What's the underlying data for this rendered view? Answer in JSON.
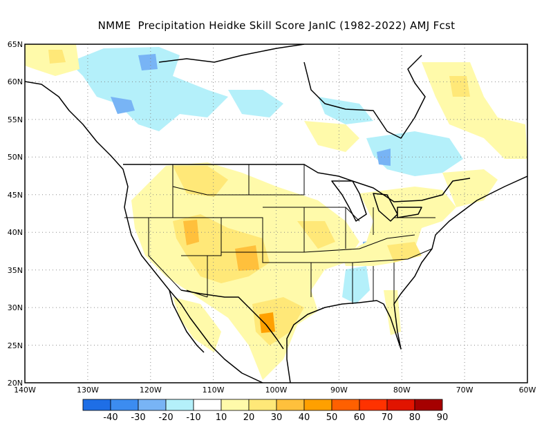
{
  "title": "NMME  Precipitation Heidke Skill Score JanIC (1982-2022) AMJ Fcst",
  "map": {
    "lat_labels": [
      "65N",
      "60N",
      "55N",
      "50N",
      "45N",
      "40N",
      "35N",
      "30N",
      "25N",
      "20N"
    ],
    "lon_labels": [
      "140W",
      "130W",
      "120W",
      "110W",
      "100W",
      "90W",
      "80W",
      "70W",
      "60W"
    ],
    "lat_range": [
      20,
      65
    ],
    "lon_range": [
      -140,
      -60
    ],
    "grid": "dotted"
  },
  "colorbar": {
    "labels": [
      "-40",
      "-30",
      "-20",
      "-10",
      "10",
      "20",
      "30",
      "40",
      "50",
      "60",
      "70",
      "80",
      "90"
    ],
    "colors": [
      "#1e6ee6",
      "#3c8cf0",
      "#78b4f5",
      "#b4f0fa",
      "#ffffff",
      "#fffaaa",
      "#ffe878",
      "#ffc03c",
      "#ffa000",
      "#ff6000",
      "#ff3200",
      "#e11400",
      "#a50000"
    ]
  },
  "colors": {
    "coast": "#000000",
    "grid": "#888888"
  }
}
